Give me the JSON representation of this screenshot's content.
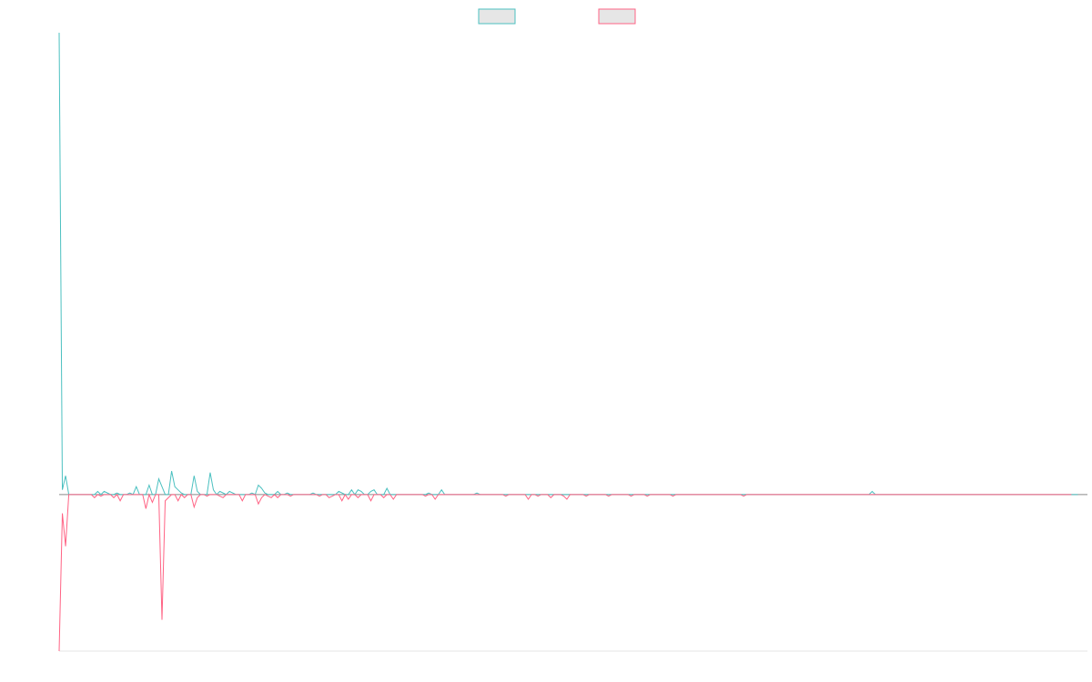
{
  "chart_data": {
    "type": "line",
    "title": "",
    "xlabel": "",
    "ylabel": "",
    "grid": false,
    "legend": "top-center",
    "xlim": [
      0,
      320
    ],
    "ylim": [
      -100,
      295
    ],
    "x_step": 1,
    "series": [
      {
        "color": "#4bc0c0",
        "legend_fill": "#e6e6e6",
        "values": [
          295,
          3,
          12,
          0,
          0,
          0,
          0,
          0,
          0,
          0,
          0,
          0,
          2,
          0,
          2,
          1,
          0,
          0,
          1,
          0,
          0,
          0,
          1,
          0,
          5,
          0,
          0,
          0,
          6,
          0,
          0,
          10,
          5,
          0,
          0,
          15,
          5,
          3,
          1,
          0,
          0,
          0,
          12,
          2,
          0,
          0,
          0,
          14,
          3,
          0,
          2,
          1,
          0,
          2,
          1,
          0,
          0,
          0,
          0,
          0,
          1,
          0,
          6,
          4,
          1,
          0,
          0,
          0,
          2,
          0,
          0,
          1,
          0,
          0,
          0,
          0,
          0,
          0,
          0,
          1,
          0,
          0,
          0,
          0,
          0,
          0,
          0,
          2,
          1,
          0,
          0,
          3,
          0,
          3,
          2,
          0,
          0,
          2,
          3,
          0,
          0,
          0,
          4,
          0,
          0,
          0,
          0,
          0,
          0,
          0,
          0,
          0,
          0,
          0,
          0,
          1,
          0,
          0,
          0,
          3,
          0,
          0,
          0,
          0,
          0,
          0,
          0,
          0,
          0,
          0,
          1,
          0,
          0,
          0,
          0,
          0,
          0,
          0,
          0,
          0,
          0,
          0,
          0,
          0,
          0,
          0,
          0,
          0,
          0,
          0,
          0,
          0,
          0,
          0,
          0,
          0,
          0,
          0,
          0,
          0,
          0,
          0,
          0,
          0,
          0,
          0,
          0,
          0,
          0,
          0,
          0,
          0,
          0,
          0,
          0,
          0,
          0,
          0,
          0,
          0,
          0,
          0,
          0,
          0,
          0,
          0,
          0,
          0,
          0,
          0,
          0,
          0,
          0,
          0,
          0,
          0,
          0,
          0,
          0,
          0,
          0,
          0,
          0,
          0,
          0,
          0,
          0,
          0,
          0,
          0,
          0,
          0,
          0,
          0,
          0,
          0,
          0,
          0,
          0,
          0,
          0,
          0,
          0,
          0,
          0,
          0,
          0,
          0,
          0,
          0,
          0,
          0,
          0,
          0,
          0,
          0,
          0,
          0,
          0,
          0,
          0,
          0,
          0,
          0,
          0,
          0,
          0,
          0,
          0,
          0,
          0,
          0,
          0,
          2,
          0,
          0,
          0,
          0,
          0,
          0,
          0,
          0,
          0,
          0,
          0,
          0,
          0,
          0,
          0,
          0,
          0,
          0,
          0,
          0,
          0,
          0,
          0,
          0,
          0,
          0,
          0,
          0,
          0,
          0,
          0,
          0,
          0,
          0,
          0,
          0,
          0,
          0,
          0,
          0,
          0,
          0,
          0,
          0,
          0,
          0,
          0,
          0,
          0,
          0,
          0,
          0,
          0,
          0,
          0,
          0,
          0,
          0,
          0,
          0,
          0,
          0,
          0,
          0
        ]
      },
      {
        "color": "#ff6384",
        "legend_fill": "#e6e6e6",
        "values": [
          -100,
          -12,
          -33,
          0,
          0,
          0,
          0,
          0,
          0,
          0,
          0,
          -2,
          0,
          -1,
          0,
          0,
          0,
          -2,
          0,
          -4,
          0,
          0,
          0,
          0,
          0,
          0,
          0,
          -9,
          0,
          -5,
          0,
          0,
          -80,
          -4,
          -2,
          0,
          0,
          -4,
          0,
          -2,
          0,
          0,
          -8,
          -2,
          0,
          0,
          -1,
          0,
          0,
          0,
          -1,
          -2,
          0,
          0,
          0,
          0,
          0,
          -4,
          0,
          0,
          0,
          0,
          -6,
          -2,
          0,
          -1,
          -2,
          0,
          -2,
          0,
          0,
          0,
          -1,
          0,
          0,
          0,
          0,
          0,
          0,
          0,
          0,
          -1,
          0,
          0,
          -2,
          -1,
          0,
          0,
          -4,
          0,
          -3,
          0,
          0,
          -2,
          0,
          0,
          0,
          -4,
          0,
          0,
          0,
          -2,
          0,
          0,
          -3,
          0,
          0,
          0,
          0,
          0,
          0,
          0,
          0,
          0,
          -1,
          0,
          0,
          -3,
          0,
          0,
          0,
          0,
          0,
          0,
          0,
          0,
          0,
          0,
          0,
          0,
          0,
          0,
          0,
          0,
          0,
          0,
          0,
          0,
          0,
          -1,
          0,
          0,
          0,
          0,
          0,
          0,
          -3,
          0,
          0,
          -1,
          0,
          0,
          0,
          -2,
          0,
          0,
          0,
          -1,
          -3,
          0,
          0,
          0,
          0,
          0,
          -1,
          0,
          0,
          0,
          0,
          0,
          0,
          -1,
          0,
          0,
          0,
          0,
          0,
          0,
          -1,
          0,
          0,
          0,
          0,
          -1,
          0,
          0,
          0,
          0,
          0,
          0,
          0,
          -1,
          0,
          0,
          0,
          0,
          0,
          0,
          0,
          0,
          0,
          0,
          0,
          0,
          0,
          0,
          0,
          0,
          0,
          0,
          0,
          0,
          0,
          -1,
          0,
          0,
          0,
          0,
          0,
          0,
          0,
          0,
          0,
          0,
          0,
          0,
          0,
          0,
          0,
          0,
          0,
          0,
          0,
          0,
          0,
          0,
          0,
          0,
          0,
          0,
          0,
          0,
          0,
          0,
          0,
          0,
          0,
          0,
          0,
          0,
          0,
          0,
          0,
          0,
          0,
          0,
          0,
          0,
          0,
          0,
          0,
          0,
          0,
          0,
          0,
          0,
          0,
          0,
          0,
          0,
          0,
          0,
          0,
          0,
          0,
          0,
          0,
          0,
          0,
          0,
          0,
          0,
          0,
          0,
          0,
          0,
          0,
          0,
          0,
          0,
          0,
          0,
          0,
          0,
          0,
          0,
          0,
          0,
          0,
          0,
          0,
          0,
          0,
          0,
          0,
          0,
          0,
          0,
          0,
          0,
          0,
          0,
          0,
          0,
          0,
          0
        ]
      }
    ]
  }
}
